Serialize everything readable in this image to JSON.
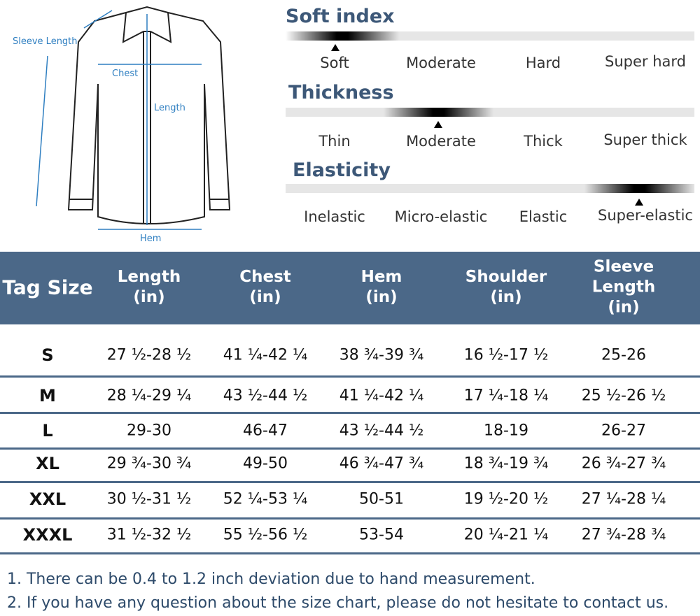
{
  "diagram": {
    "labels": {
      "sleeve": "Sleeve Length",
      "chest": "Chest",
      "length": "Length",
      "hem": "Hem"
    }
  },
  "scales": [
    {
      "title": "Soft index",
      "options": [
        "Soft",
        "Moderate",
        "Hard",
        "Super hard"
      ]
    },
    {
      "title": "Thickness",
      "options": [
        "Thin",
        "Moderate",
        "Thick",
        "Super thick"
      ]
    },
    {
      "title": "Elasticity",
      "options": [
        "Inelastic",
        "Micro-elastic",
        "Elastic",
        "Super-elastic"
      ]
    }
  ],
  "table": {
    "header": [
      "Tag Size",
      "Length\n(in)",
      "Chest\n(in)",
      "Hem\n(in)",
      "Shoulder\n(in)",
      "Sleeve Length\n(in)"
    ],
    "rows": [
      [
        "S",
        "27 ½-28 ½",
        "41 ¼-42 ¼",
        "38 ¾-39 ¾",
        "16 ½-17 ½",
        "25-26"
      ],
      [
        "M",
        "28 ¼-29 ¼",
        "43 ½-44 ½",
        "41 ¼-42 ¼",
        "17 ¼-18 ¼",
        "25 ½-26 ½"
      ],
      [
        "L",
        "29-30",
        "46-47",
        "43 ½-44 ½",
        "18-19",
        "26-27"
      ],
      [
        "XL",
        "29 ¾-30 ¾",
        "49-50",
        "46 ¾-47 ¾",
        "18 ¾-19 ¾",
        "26 ¾-27 ¾"
      ],
      [
        "XXL",
        "30 ½-31 ½",
        "52 ¼-53 ¼",
        "50-51",
        "19 ½-20 ½",
        "27 ¼-28 ¼"
      ],
      [
        "XXXL",
        "31 ½-32 ½",
        "55 ½-56 ½",
        "53-54",
        "20 ¼-21 ¼",
        "27 ¾-28 ¾"
      ]
    ]
  },
  "notes": [
    "1. There can be 0.4 to 1.2 inch deviation due to hand measurement.",
    "2. If you have any question about the size chart, please do not hesitate to contact us."
  ]
}
